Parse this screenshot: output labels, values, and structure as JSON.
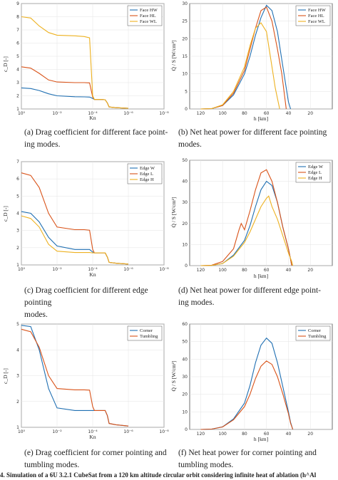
{
  "colors": {
    "blue": "#1f6fb2",
    "orange": "#d95319",
    "yellow": "#edb120"
  },
  "charts": [
    {
      "id": "a",
      "caption_1": "(a) Drag coefficient for different face point-",
      "caption_2": "ing modes.",
      "xlabel": "Kn",
      "ylabel": "c_D [-]",
      "xticks": [
        "10⁰",
        "10⁻²",
        "10⁻⁴",
        "10⁻⁶",
        "10⁻⁸"
      ],
      "legend": [
        "Face HW",
        "Face HL",
        "Face WL"
      ]
    },
    {
      "id": "b",
      "caption_1": "(b) Net heat power for different face pointing",
      "caption_2": "modes.",
      "xlabel": "h [km]",
      "ylabel": "Q̇ / S [W/cm²]",
      "legend": [
        "Face HW",
        "Face HL",
        "Face WL"
      ]
    },
    {
      "id": "c",
      "caption_1": "(c) Drag coefficient for different edge pointing",
      "caption_2": "modes.",
      "xlabel": "Kn",
      "ylabel": "c_D [-]",
      "legend": [
        "Edge W",
        "Edge L",
        "Edge H"
      ]
    },
    {
      "id": "d",
      "caption_1": "(d) Net heat power for different edge point-",
      "caption_2": "ing modes.",
      "xlabel": "h [km]",
      "ylabel": "Q̇ / S [W/cm²]",
      "legend": [
        "Edge W",
        "Edge L",
        "Edge H"
      ]
    },
    {
      "id": "e",
      "caption_1": "(e) Drag coefficient for corner pointing and",
      "caption_2": "tumbling modes.",
      "xlabel": "Kn",
      "ylabel": "c_D [-]",
      "legend": [
        "Corner",
        "Tumbling"
      ]
    },
    {
      "id": "f",
      "caption_1": "(f) Net heat power for corner pointing and",
      "caption_2": "tumbling modes.",
      "xlabel": "h [km]",
      "ylabel": "Q̇ / S [W/cm²]",
      "legend": [
        "Corner",
        "Tumbling"
      ]
    }
  ],
  "footer": "4. Simulation of a 6U 3.2.1 CubeSat from a 120 km altitude circular orbit considering infinite heat of ablation (h^Al",
  "chart_data": [
    {
      "type": "line",
      "xscale": "log",
      "xreversed": true,
      "xlim": [
        1,
        1e-08
      ],
      "ylim": [
        1,
        9
      ],
      "xlabel": "Kn",
      "ylabel": "c_D [-]",
      "legend_position": "top-right",
      "series": [
        {
          "name": "Face HW",
          "x": [
            1,
            0.3,
            0.1,
            0.03,
            0.01,
            0.001,
            0.0003,
            0.00015,
            0.0001,
            8e-05,
            3e-05,
            2e-05,
            1.5e-05,
            1.2e-05,
            5e-06,
            1e-06
          ],
          "y": [
            2.6,
            2.55,
            2.4,
            2.15,
            2.0,
            1.93,
            1.92,
            1.9,
            1.8,
            1.72,
            1.72,
            1.7,
            1.45,
            1.15,
            1.1,
            1.05
          ]
        },
        {
          "name": "Face HL",
          "x": [
            1,
            0.3,
            0.1,
            0.03,
            0.01,
            0.001,
            0.0003,
            0.00015,
            0.0001,
            8e-05,
            3e-05,
            2e-05,
            1.5e-05,
            1.2e-05,
            5e-06,
            1e-06
          ],
          "y": [
            4.2,
            4.1,
            3.7,
            3.2,
            3.05,
            3.0,
            3.0,
            2.98,
            1.9,
            1.72,
            1.72,
            1.7,
            1.45,
            1.15,
            1.1,
            1.05
          ]
        },
        {
          "name": "Face WL",
          "x": [
            1,
            0.3,
            0.1,
            0.03,
            0.01,
            0.001,
            0.0003,
            0.00015,
            0.0001,
            8e-05,
            3e-05,
            2e-05,
            1.5e-05,
            1.2e-05,
            5e-06,
            1e-06
          ],
          "y": [
            8.0,
            7.9,
            7.3,
            6.8,
            6.6,
            6.55,
            6.5,
            6.4,
            2.0,
            1.72,
            1.72,
            1.7,
            1.45,
            1.15,
            1.1,
            1.05
          ]
        }
      ]
    },
    {
      "type": "line",
      "xreversed": true,
      "xlim": [
        130,
        0
      ],
      "ylim": [
        0,
        30
      ],
      "xticks": [
        120,
        100,
        80,
        60,
        40,
        20
      ],
      "yticks": [
        0,
        5,
        10,
        15,
        20,
        25,
        30
      ],
      "xlabel": "h [km]",
      "legend_position": "top-right",
      "series": [
        {
          "name": "Face HW",
          "x": [
            120,
            110,
            100,
            90,
            80,
            75,
            70,
            65,
            60,
            55,
            50,
            46,
            42,
            40,
            38
          ],
          "y": [
            0,
            0.1,
            1,
            4,
            10,
            15,
            21,
            26,
            29.5,
            28,
            22,
            14,
            6,
            2,
            0
          ]
        },
        {
          "name": "Face HL",
          "x": [
            120,
            110,
            100,
            90,
            80,
            75,
            70,
            65,
            60,
            55,
            50,
            46,
            44,
            42
          ],
          "y": [
            0,
            0.1,
            1,
            4.5,
            11,
            17,
            23,
            28,
            29,
            25,
            17,
            10,
            5,
            0
          ]
        },
        {
          "name": "Face WL",
          "x": [
            120,
            110,
            100,
            90,
            80,
            75,
            70,
            65,
            60,
            55,
            52,
            50,
            48
          ],
          "y": [
            0,
            0.1,
            1.2,
            5,
            12,
            18,
            23,
            24.5,
            22,
            12,
            6,
            3,
            0
          ]
        }
      ]
    },
    {
      "type": "line",
      "xscale": "log",
      "xreversed": true,
      "xlim": [
        1,
        1e-08
      ],
      "ylim": [
        1,
        7
      ],
      "xlabel": "Kn",
      "ylabel": "c_D [-]",
      "legend_position": "top-right",
      "series": [
        {
          "name": "Edge W",
          "x": [
            1,
            0.3,
            0.1,
            0.03,
            0.01,
            0.001,
            0.0003,
            0.00015,
            0.0001,
            8e-05,
            3e-05,
            2e-05,
            1.5e-05,
            1.2e-05,
            5e-06,
            1e-06
          ],
          "y": [
            4.1,
            4.0,
            3.5,
            2.6,
            2.1,
            1.9,
            1.9,
            1.9,
            1.75,
            1.7,
            1.7,
            1.7,
            1.45,
            1.15,
            1.1,
            1.05
          ]
        },
        {
          "name": "Edge L",
          "x": [
            1,
            0.3,
            0.1,
            0.03,
            0.01,
            0.001,
            0.0003,
            0.00015,
            0.0001,
            8e-05,
            3e-05,
            2e-05,
            1.5e-05,
            1.2e-05,
            5e-06,
            1e-06
          ],
          "y": [
            6.35,
            6.2,
            5.5,
            4.0,
            3.2,
            3.05,
            3.05,
            3.02,
            1.9,
            1.7,
            1.7,
            1.7,
            1.45,
            1.15,
            1.1,
            1.05
          ]
        },
        {
          "name": "Edge H",
          "x": [
            1,
            0.3,
            0.1,
            0.03,
            0.01,
            0.001,
            0.0003,
            0.00015,
            0.0001,
            8e-05,
            3e-05,
            2e-05,
            1.5e-05,
            1.2e-05,
            5e-06,
            1e-06
          ],
          "y": [
            3.85,
            3.7,
            3.2,
            2.2,
            1.8,
            1.72,
            1.72,
            1.72,
            1.7,
            1.7,
            1.7,
            1.7,
            1.45,
            1.15,
            1.1,
            1.05
          ]
        }
      ]
    },
    {
      "type": "line",
      "xreversed": true,
      "xlim": [
        130,
        0
      ],
      "ylim": [
        0,
        50
      ],
      "xticks": [
        120,
        100,
        80,
        60,
        40,
        20
      ],
      "yticks": [
        0,
        10,
        20,
        30,
        40,
        50
      ],
      "xlabel": "h [km]",
      "legend_position": "top-right",
      "series": [
        {
          "name": "Edge W",
          "x": [
            120,
            110,
            100,
            90,
            80,
            75,
            70,
            65,
            60,
            55,
            50,
            45,
            40,
            38,
            37
          ],
          "y": [
            0,
            0.1,
            1,
            5,
            12,
            19,
            28,
            36,
            40,
            38,
            30,
            18,
            8,
            3,
            0
          ]
        },
        {
          "name": "Edge L",
          "x": [
            120,
            110,
            100,
            90,
            85,
            83,
            80,
            75,
            70,
            65,
            60,
            55,
            50,
            45,
            40,
            38,
            37
          ],
          "y": [
            0,
            0.2,
            2,
            8,
            17,
            20,
            17,
            26,
            36,
            44,
            45.5,
            40,
            30,
            18,
            8,
            3,
            0
          ]
        },
        {
          "name": "Edge H",
          "x": [
            120,
            110,
            100,
            90,
            80,
            75,
            70,
            65,
            60,
            58,
            55,
            50,
            45,
            40,
            37,
            36
          ],
          "y": [
            0,
            0.1,
            1,
            4.5,
            11,
            16,
            22,
            28,
            32,
            33,
            28,
            22,
            14,
            6,
            2,
            0
          ]
        }
      ]
    },
    {
      "type": "line",
      "xscale": "log",
      "xreversed": true,
      "xlim": [
        1,
        1e-08
      ],
      "ylim": [
        1,
        5
      ],
      "xlabel": "Kn",
      "ylabel": "c_D [-]",
      "legend_position": "top-right",
      "series": [
        {
          "name": "Corner",
          "x": [
            1,
            0.3,
            0.1,
            0.03,
            0.01,
            0.001,
            0.0003,
            0.0001,
            3e-05,
            2e-05,
            1.5e-05,
            1.2e-05,
            5e-06,
            1e-06
          ],
          "y": [
            4.95,
            4.9,
            4.0,
            2.5,
            1.75,
            1.65,
            1.65,
            1.65,
            1.65,
            1.65,
            1.45,
            1.15,
            1.1,
            1.05
          ]
        },
        {
          "name": "Tumbling",
          "x": [
            1,
            0.3,
            0.1,
            0.03,
            0.01,
            0.001,
            0.0003,
            0.00015,
            0.0001,
            8e-05,
            3e-05,
            2e-05,
            1.5e-05,
            1.2e-05,
            5e-06,
            1e-06
          ],
          "y": [
            4.8,
            4.7,
            4.1,
            3.0,
            2.5,
            2.45,
            2.45,
            2.44,
            1.8,
            1.65,
            1.65,
            1.65,
            1.45,
            1.15,
            1.1,
            1.05
          ]
        }
      ]
    },
    {
      "type": "line",
      "xreversed": true,
      "xlim": [
        130,
        0
      ],
      "ylim": [
        0,
        60
      ],
      "xticks": [
        120,
        100,
        80,
        60,
        40,
        20
      ],
      "yticks": [
        0,
        10,
        20,
        30,
        40,
        50,
        60
      ],
      "xlabel": "h [km]",
      "legend_position": "top-right",
      "series": [
        {
          "name": "Corner",
          "x": [
            120,
            110,
            100,
            90,
            80,
            75,
            70,
            65,
            60,
            55,
            50,
            45,
            40,
            38,
            36
          ],
          "y": [
            0,
            0.2,
            1.5,
            6,
            15,
            25,
            38,
            48,
            52,
            49,
            38,
            24,
            10,
            4,
            0
          ]
        },
        {
          "name": "Tumbling",
          "x": [
            120,
            110,
            100,
            90,
            80,
            75,
            70,
            65,
            60,
            55,
            50,
            45,
            40,
            38,
            36
          ],
          "y": [
            0,
            0.2,
            1.4,
            5.5,
            13,
            20,
            29,
            36,
            39,
            37,
            30,
            20,
            9,
            3.5,
            0
          ]
        }
      ]
    }
  ]
}
